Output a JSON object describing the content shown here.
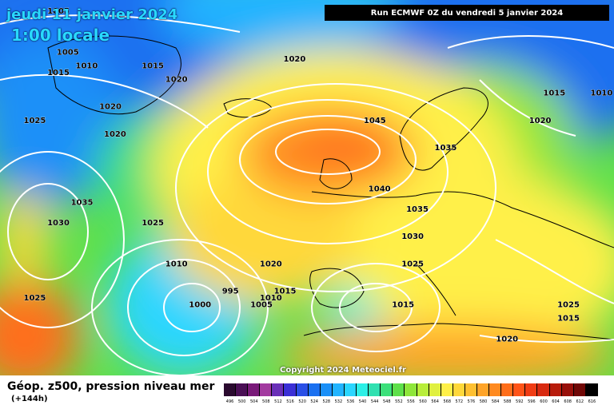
{
  "header": {
    "date": "jeudi 11 janvier 2024",
    "local_time": "1:00 locale",
    "run": "Run ECMWF 0Z du vendredi 5 janvier 2024"
  },
  "copyright": "Copyright 2024 Meteociel.fr",
  "footer": {
    "title": "Géop. z500, pression niveau mer",
    "subtitle": "(+144h)"
  },
  "color_scale": {
    "ticks": [
      "496",
      "500",
      "504",
      "508",
      "512",
      "516",
      "520",
      "524",
      "528",
      "532",
      "536",
      "540",
      "544",
      "548",
      "552",
      "556",
      "560",
      "564",
      "568",
      "572",
      "576",
      "580",
      "584",
      "588",
      "592",
      "596",
      "600",
      "604",
      "608",
      "612",
      "616"
    ],
    "colors": [
      "#2a0a2f",
      "#4a0f55",
      "#7a1a7a",
      "#a33aa0",
      "#6a2fb8",
      "#3b2fd6",
      "#2a4fe6",
      "#1a70f0",
      "#1a90f8",
      "#22b4ff",
      "#2ad6ff",
      "#2cf0e6",
      "#30e0b0",
      "#3ce07a",
      "#5ee04a",
      "#8ee63a",
      "#b8ee3a",
      "#e0f040",
      "#fff048",
      "#ffd83a",
      "#ffc030",
      "#ffa428",
      "#ff8a20",
      "#ff6e1a",
      "#ff5418",
      "#f03c14",
      "#d82a10",
      "#b81c0c",
      "#98100a",
      "#700806",
      "#000000"
    ]
  },
  "isobars": [
    {
      "label": "1005",
      "lon": -70,
      "lat": 78
    },
    {
      "label": "1005",
      "lon": -68,
      "lat": 72
    },
    {
      "label": "1010",
      "lon": -64,
      "lat": 70
    },
    {
      "label": "1015",
      "lon": -70,
      "lat": 69
    },
    {
      "label": "1015",
      "lon": -50,
      "lat": 70
    },
    {
      "label": "1020",
      "lon": -45,
      "lat": 68
    },
    {
      "label": "1020",
      "lon": -59,
      "lat": 64
    },
    {
      "label": "1025",
      "lon": -75,
      "lat": 62
    },
    {
      "label": "1020",
      "lon": -58,
      "lat": 60
    },
    {
      "label": "1020",
      "lon": -20,
      "lat": 71
    },
    {
      "label": "1020",
      "lon": 35,
      "lat": 78
    },
    {
      "label": "1015",
      "lon": 35,
      "lat": 66
    },
    {
      "label": "1010",
      "lon": 45,
      "lat": 66
    },
    {
      "label": "1020",
      "lon": 32,
      "lat": 62
    },
    {
      "label": "1045",
      "lon": -3,
      "lat": 62
    },
    {
      "label": "1035",
      "lon": 12,
      "lat": 58
    },
    {
      "label": "1040",
      "lon": -2,
      "lat": 52
    },
    {
      "label": "1035",
      "lon": 6,
      "lat": 49
    },
    {
      "label": "1030",
      "lon": 5,
      "lat": 45
    },
    {
      "label": "1025",
      "lon": 5,
      "lat": 41
    },
    {
      "label": "1035",
      "lon": -65,
      "lat": 50
    },
    {
      "label": "1030",
      "lon": -70,
      "lat": 47
    },
    {
      "label": "1025",
      "lon": -50,
      "lat": 47
    },
    {
      "label": "1010",
      "lon": -45,
      "lat": 41
    },
    {
      "label": "1020",
      "lon": -25,
      "lat": 41
    },
    {
      "label": "1015",
      "lon": -22,
      "lat": 37
    },
    {
      "label": "995",
      "lon": -33,
      "lat": 37
    },
    {
      "label": "1010",
      "lon": -25,
      "lat": 36
    },
    {
      "label": "1005",
      "lon": -27,
      "lat": 35
    },
    {
      "label": "1000",
      "lon": -40,
      "lat": 35
    },
    {
      "label": "1025",
      "lon": -75,
      "lat": 36
    },
    {
      "label": "1015",
      "lon": 3,
      "lat": 35
    },
    {
      "label": "1025",
      "lon": 38,
      "lat": 35
    },
    {
      "label": "1015",
      "lon": 38,
      "lat": 33
    },
    {
      "label": "1020",
      "lon": 25,
      "lat": 30
    }
  ],
  "legend_icons": [
    "isobar-line",
    "coastline"
  ]
}
